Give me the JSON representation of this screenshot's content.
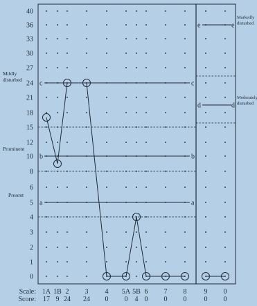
{
  "chart_data": {
    "type": "line",
    "y_ticks": [
      0,
      1,
      2,
      3,
      4,
      5,
      6,
      7,
      8,
      9,
      10,
      11,
      12,
      15,
      18,
      21,
      24,
      27,
      30,
      33,
      36,
      40
    ],
    "y_labeled_ticks": [
      0,
      1,
      2,
      3,
      4,
      5,
      6,
      8,
      10,
      12,
      15,
      18,
      21,
      24,
      27,
      30,
      33,
      36,
      40
    ],
    "band_labels": [
      {
        "text": "Mildly disturbed",
        "tick": 24
      },
      {
        "text": "Prominent",
        "tick": 10
      },
      {
        "text": "Present",
        "tick": 5
      }
    ],
    "scale_row_label": "Scale:",
    "score_row_label": "Score:",
    "columns": [
      {
        "scale": "1A",
        "score": "17"
      },
      {
        "scale": "1B",
        "score": "9"
      },
      {
        "scale": "2",
        "score": "24"
      },
      {
        "scale": "3",
        "score": "24"
      },
      {
        "scale": "4",
        "score": "0"
      },
      {
        "scale": "5A",
        "score": "0"
      },
      {
        "scale": "5B",
        "score": "4"
      },
      {
        "scale": "6",
        "score": "0"
      },
      {
        "scale": "7",
        "score": "0"
      },
      {
        "scale": "8",
        "score": "0"
      },
      {
        "scale": "9",
        "score": "0"
      },
      {
        "scale": "0",
        "score": "0"
      }
    ],
    "series": [
      {
        "points": [
          {
            "x": "1A",
            "y": 17
          },
          {
            "x": "1B",
            "y": 9
          },
          {
            "x": "2",
            "y": 24
          },
          {
            "x": "3",
            "y": 24
          },
          {
            "x": "4",
            "y": 0
          },
          {
            "x": "5A",
            "y": 0
          },
          {
            "x": "5B",
            "y": 4
          },
          {
            "x": "6",
            "y": 0
          },
          {
            "x": "7",
            "y": 0
          },
          {
            "x": "8",
            "y": 0
          }
        ]
      },
      {
        "points": [
          {
            "x": "9",
            "y": 0
          },
          {
            "x": "0",
            "y": 0
          }
        ]
      }
    ],
    "main_lines": [
      {
        "letter": "c",
        "tick": 24
      },
      {
        "letter": "b",
        "tick": 10
      },
      {
        "letter": "a",
        "tick": 5
      }
    ],
    "main_dashed_ticks": [
      15,
      8,
      4
    ],
    "side_lines": [
      {
        "letter": "e",
        "tick": 36,
        "label": "Markedly disturbed"
      },
      {
        "letter": "d",
        "tick": 19,
        "label": "Moderately disturbed"
      }
    ]
  }
}
